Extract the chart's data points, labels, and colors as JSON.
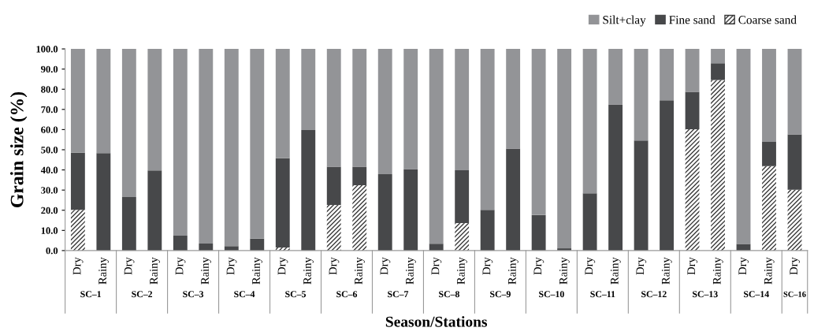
{
  "chart_data": {
    "type": "bar",
    "stacked": true,
    "xlabel": "Season/Stations",
    "ylabel": "Grain size (%)",
    "categories": [
      "Dry",
      "Rainy",
      "Dry",
      "Rainy",
      "Dry",
      "Rainy",
      "Dry",
      "Rainy",
      "Dry",
      "Rainy",
      "Dry",
      "Rainy",
      "Dry",
      "Rainy",
      "Dry",
      "Rainy",
      "Dry",
      "Rainy",
      "Dry",
      "Rainy",
      "Dry",
      "Rainy",
      "Dry",
      "Rainy",
      "Dry",
      "Rainy",
      "Dry",
      "Rainy",
      "Dry"
    ],
    "series": [
      {
        "name": "Coarse sand",
        "color": "#ffffff",
        "values": [
          20.2,
          0,
          0,
          0,
          0,
          0,
          0,
          0,
          1.5,
          0,
          22.6,
          32.4,
          0,
          0,
          0,
          13.6,
          0,
          0,
          0,
          0,
          0,
          0,
          0,
          0,
          60.2,
          84.6,
          0,
          41.9,
          30.2
        ]
      },
      {
        "name": "Fine sand",
        "color": "#47484a",
        "values": [
          28.3,
          48.3,
          26.5,
          39.7,
          7.4,
          3.5,
          2.2,
          5.9,
          44.3,
          59.8,
          19.0,
          9.2,
          37.9,
          40.4,
          3.4,
          26.2,
          20.2,
          50.6,
          17.6,
          1.1,
          28.4,
          72.5,
          54.6,
          74.5,
          18.5,
          8.3,
          3.3,
          12.0,
          27.4
        ]
      },
      {
        "name": "Silt+clay",
        "color": "#939497",
        "values": [
          51.5,
          51.7,
          73.5,
          60.3,
          92.6,
          96.5,
          97.8,
          94.1,
          54.2,
          40.2,
          58.4,
          58.4,
          62.1,
          59.6,
          96.6,
          60.2,
          79.8,
          49.4,
          82.4,
          98.9,
          71.6,
          27.5,
          45.4,
          25.5,
          21.3,
          7.1,
          96.7,
          46.1,
          42.4
        ]
      }
    ],
    "annotations": [
      "SC–1",
      "SC–2",
      "SC–3",
      "SC–4",
      "SC–5",
      "SC–6",
      "SC–7",
      "SC–8",
      "SC–9",
      "SC–10",
      "SC–11",
      "SC–12",
      "SC–13",
      "SC–14",
      "SC–16"
    ],
    "ylim": [
      0,
      100
    ],
    "yticks": [
      {
        "value": 0,
        "label": "0.0"
      },
      {
        "value": 10,
        "label": "10.0"
      },
      {
        "value": 20,
        "label": "20.0"
      },
      {
        "value": 30,
        "label": "30.0"
      },
      {
        "value": 40,
        "label": "40.0"
      },
      {
        "value": 50,
        "label": "50.0"
      },
      {
        "value": 60,
        "label": "60.0"
      },
      {
        "value": 70,
        "label": "70.0"
      },
      {
        "value": 80,
        "label": "80.0"
      },
      {
        "value": 90,
        "label": "90.0"
      },
      {
        "value": 100,
        "label": "100.0"
      }
    ],
    "grid": false,
    "legend": "top right"
  }
}
